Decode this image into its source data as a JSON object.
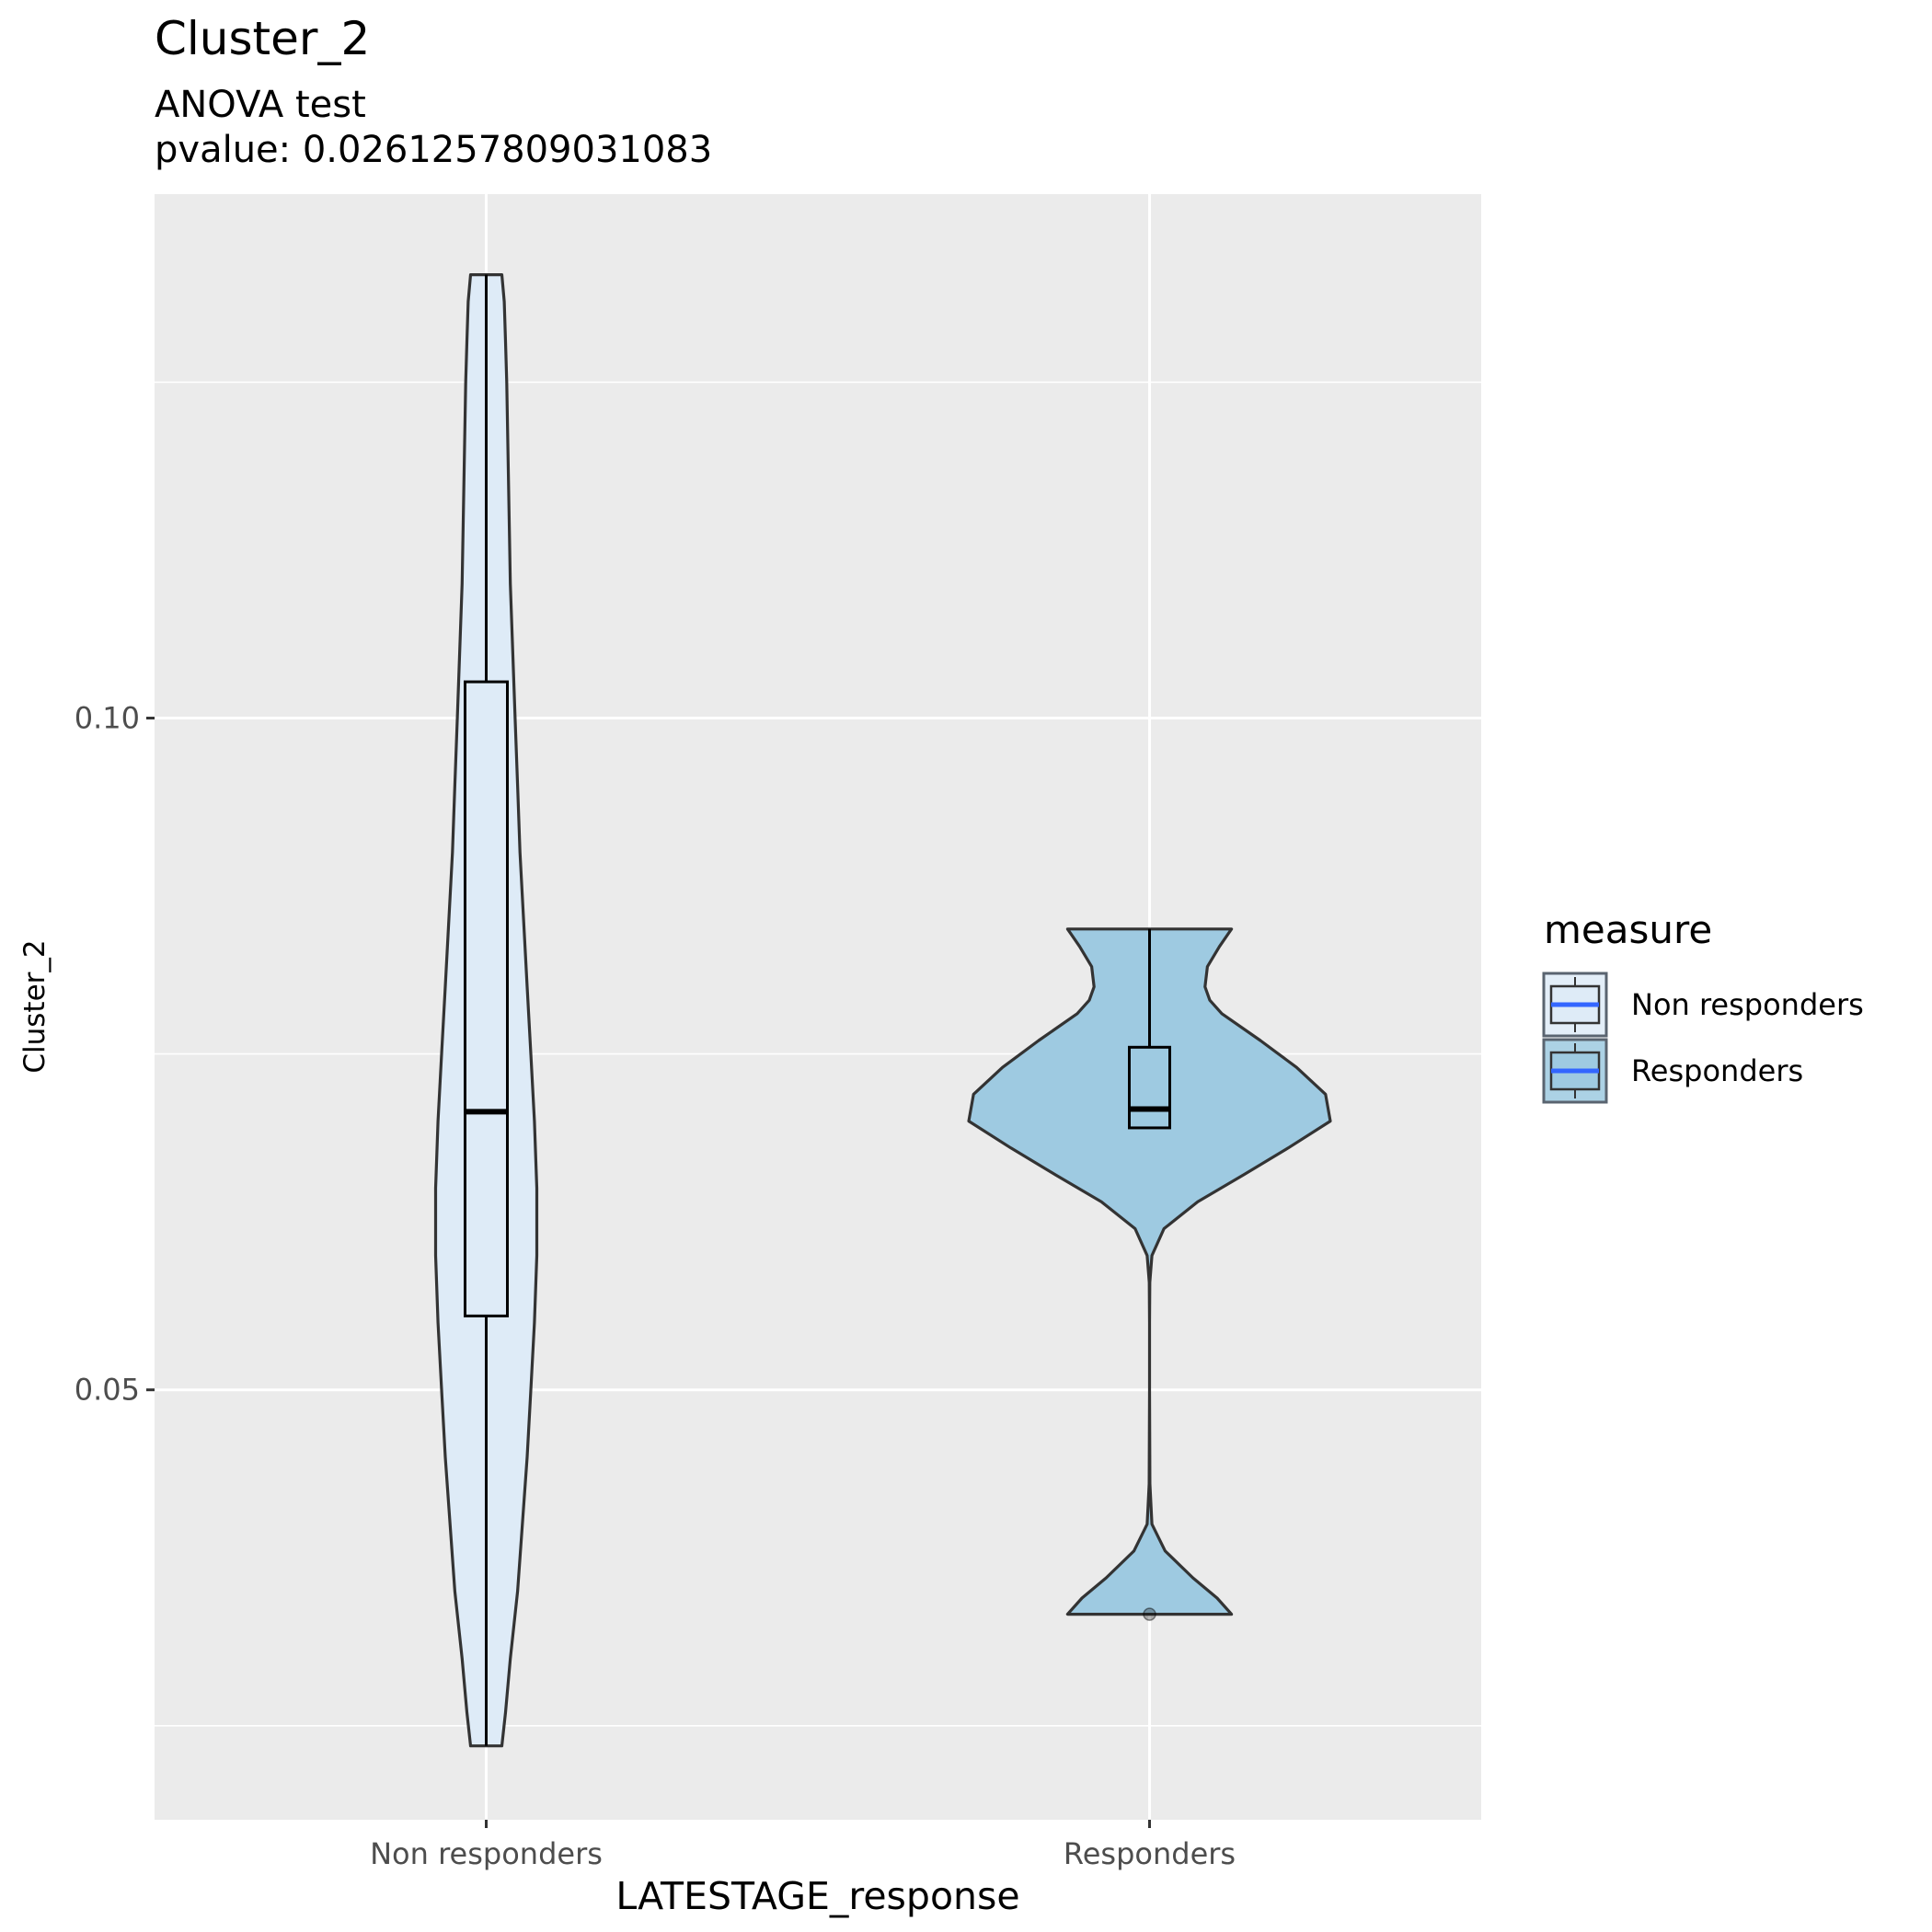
{
  "chart_data": {
    "type": "violin",
    "title": "Cluster_2",
    "subtitle_line1": "ANOVA test",
    "subtitle_line2": "pvalue: 0.0261257809031083",
    "xlabel": "LATESTAGE_response",
    "ylabel": "Cluster_2",
    "categories": [
      "Non responders",
      "Responders"
    ],
    "ylim": [
      0.018,
      0.139
    ],
    "y_ticks": [
      0.05,
      0.1
    ],
    "y_tick_labels": [
      "0.05",
      "0.10"
    ],
    "y_minor_gridlines": [
      0.025,
      0.075,
      0.125
    ],
    "grid": true,
    "legend": {
      "title": "measure",
      "position": "right",
      "entries": [
        "Non responders",
        "Responders"
      ]
    },
    "series": [
      {
        "name": "Non responders",
        "fill": "#deebf7",
        "violin": {
          "min": 0.0235,
          "max": 0.133,
          "profile": [
            [
              0.0235,
              0.13
            ],
            [
              0.026,
              0.16
            ],
            [
              0.03,
              0.2
            ],
            [
              0.035,
              0.26
            ],
            [
              0.04,
              0.3
            ],
            [
              0.045,
              0.34
            ],
            [
              0.05,
              0.37
            ],
            [
              0.055,
              0.4
            ],
            [
              0.06,
              0.42
            ],
            [
              0.065,
              0.42
            ],
            [
              0.07,
              0.4
            ],
            [
              0.075,
              0.37
            ],
            [
              0.08,
              0.34
            ],
            [
              0.085,
              0.31
            ],
            [
              0.09,
              0.28
            ],
            [
              0.095,
              0.26
            ],
            [
              0.1,
              0.24
            ],
            [
              0.105,
              0.22
            ],
            [
              0.11,
              0.2
            ],
            [
              0.115,
              0.19
            ],
            [
              0.12,
              0.18
            ],
            [
              0.125,
              0.17
            ],
            [
              0.128,
              0.16
            ],
            [
              0.131,
              0.15
            ],
            [
              0.133,
              0.13
            ]
          ]
        },
        "box": {
          "q1": 0.0555,
          "median": 0.0707,
          "q3": 0.1027,
          "whisker_low": 0.0235,
          "whisker_high": 0.133
        },
        "outliers": []
      },
      {
        "name": "Responders",
        "fill": "#9ecae1",
        "violin": {
          "min": 0.0333,
          "max": 0.0843,
          "profile": [
            [
              0.0333,
              0.68
            ],
            [
              0.0345,
              0.56
            ],
            [
              0.036,
              0.36
            ],
            [
              0.038,
              0.13
            ],
            [
              0.04,
              0.02
            ],
            [
              0.043,
              0.003
            ],
            [
              0.05,
              0.0
            ],
            [
              0.055,
              0.0
            ],
            [
              0.058,
              0.002
            ],
            [
              0.06,
              0.02
            ],
            [
              0.062,
              0.12
            ],
            [
              0.064,
              0.4
            ],
            [
              0.066,
              0.78
            ],
            [
              0.068,
              1.15
            ],
            [
              0.07,
              1.5
            ],
            [
              0.072,
              1.46
            ],
            [
              0.074,
              1.22
            ],
            [
              0.076,
              0.92
            ],
            [
              0.078,
              0.6
            ],
            [
              0.079,
              0.5
            ],
            [
              0.08,
              0.46
            ],
            [
              0.0815,
              0.48
            ],
            [
              0.083,
              0.58
            ],
            [
              0.0843,
              0.68
            ]
          ]
        },
        "box": {
          "q1": 0.0695,
          "median": 0.0709,
          "q3": 0.0755,
          "whisker_low": 0.0695,
          "whisker_high": 0.0843
        },
        "outliers": [
          0.0333
        ]
      }
    ]
  }
}
